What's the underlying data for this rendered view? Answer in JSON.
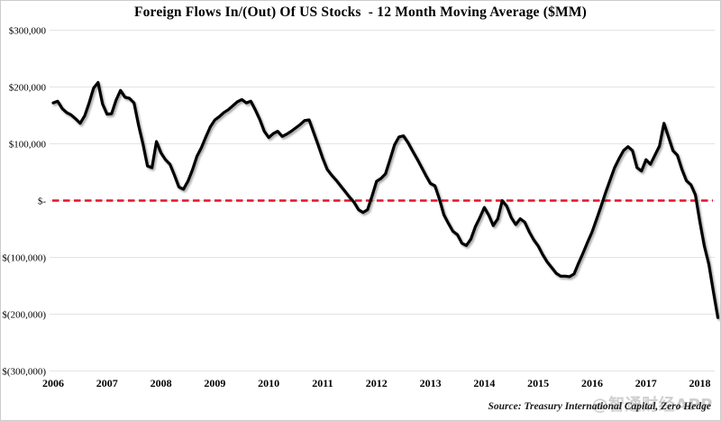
{
  "title": "Foreign Flows In/(Out) Of US Stocks  - 12 Month Moving Average ($MM)",
  "source_note": "Source: Treasury International Capital, Zero Hedge",
  "watermark": "@智通财经APP",
  "colors": {
    "background": "#ffffff",
    "line": "#000000",
    "zero_line": "#e8112d",
    "grid": "#e4e4e4",
    "text": "#000000",
    "watermark": "#a8a8a8"
  },
  "chart_data": {
    "type": "line",
    "title": "Foreign Flows In/(Out) Of US Stocks  - 12 Month Moving Average ($MM)",
    "xlabel": "",
    "ylabel": "",
    "x_frequency": "monthly",
    "x_range": [
      "2006-01",
      "2018-05"
    ],
    "x_tick_labels": [
      "2006",
      "2007",
      "2008",
      "2009",
      "2010",
      "2011",
      "2012",
      "2013",
      "2014",
      "2015",
      "2016",
      "2017",
      "2018"
    ],
    "ylim": [
      -300000,
      300000
    ],
    "grid": "horizontal-only",
    "legend": "none",
    "zero_reference_line": {
      "value": 0,
      "style": "dashed",
      "color": "#e8112d"
    },
    "y_ticks": [
      {
        "value": 300000,
        "label": "$300,000"
      },
      {
        "value": 200000,
        "label": "$200,000"
      },
      {
        "value": 100000,
        "label": "$100,000"
      },
      {
        "value": 0,
        "label": "$-"
      },
      {
        "value": -100000,
        "label": "$(100,000)"
      },
      {
        "value": -200000,
        "label": "$(200,000)"
      },
      {
        "value": -300000,
        "label": "$(300,000)"
      }
    ],
    "series": [
      {
        "name": "Foreign flows into US stocks, 12-month moving average ($MM)",
        "values": [
          172000,
          175000,
          162000,
          155000,
          151000,
          144000,
          136000,
          149000,
          172000,
          198000,
          208000,
          170000,
          152000,
          153000,
          177000,
          194000,
          182000,
          180000,
          172000,
          133000,
          99000,
          61000,
          58000,
          104000,
          84000,
          72000,
          64000,
          45000,
          24000,
          20000,
          34000,
          54000,
          78000,
          93000,
          112000,
          130000,
          142000,
          148000,
          155000,
          160000,
          167000,
          174000,
          178000,
          172000,
          175000,
          160000,
          143000,
          122000,
          111000,
          118000,
          122000,
          113000,
          117000,
          122000,
          128000,
          134000,
          141000,
          142000,
          120000,
          98000,
          75000,
          55000,
          45000,
          36000,
          26000,
          16000,
          6000,
          -3000,
          -16000,
          -21000,
          -16000,
          8000,
          34000,
          39000,
          47000,
          72000,
          98000,
          112000,
          114000,
          102000,
          88000,
          74000,
          59000,
          44000,
          30000,
          26000,
          3000,
          -25000,
          -40000,
          -54000,
          -60000,
          -75000,
          -79000,
          -68000,
          -46000,
          -30000,
          -12000,
          -26000,
          -44000,
          -32000,
          0,
          -10000,
          -30000,
          -42000,
          -32000,
          -38000,
          -55000,
          -69000,
          -80000,
          -95000,
          -108000,
          -118000,
          -128000,
          -133000,
          -133000,
          -134000,
          -129000,
          -110000,
          -92000,
          -73000,
          -55000,
          -33000,
          -10000,
          14000,
          36000,
          58000,
          74000,
          88000,
          95000,
          88000,
          58000,
          52000,
          72000,
          64000,
          80000,
          96000,
          136000,
          112000,
          88000,
          80000,
          55000,
          35000,
          28000,
          10000,
          -38000,
          -80000,
          -112000,
          -160000,
          -206000
        ]
      }
    ]
  }
}
